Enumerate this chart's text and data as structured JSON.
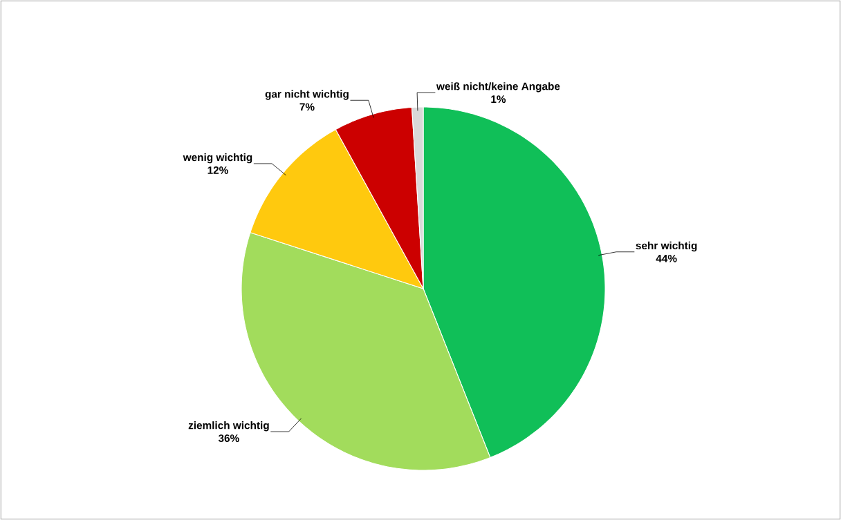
{
  "chart_data": {
    "type": "pie",
    "categories": [
      "sehr wichtig",
      "ziemlich wichtig",
      "wenig wichtig",
      "gar nicht wichtig",
      "weiß nicht/keine Angabe"
    ],
    "values": [
      44,
      36,
      12,
      7,
      1
    ],
    "value_labels": [
      "44%",
      "36%",
      "12%",
      "7%",
      "1%"
    ],
    "colors": [
      "#10bf58",
      "#a2dc5c",
      "#ffc90e",
      "#cc0000",
      "#d9d9d9"
    ]
  }
}
